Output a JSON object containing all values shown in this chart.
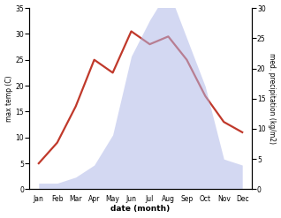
{
  "months": [
    "Jan",
    "Feb",
    "Mar",
    "Apr",
    "May",
    "Jun",
    "Jul",
    "Aug",
    "Sep",
    "Oct",
    "Nov",
    "Dec"
  ],
  "month_indices": [
    1,
    2,
    3,
    4,
    5,
    6,
    7,
    8,
    9,
    10,
    11,
    12
  ],
  "temperature": [
    5.0,
    9.0,
    16.0,
    25.0,
    22.5,
    30.5,
    28.0,
    29.5,
    25.0,
    18.0,
    13.0,
    11.0
  ],
  "precipitation": [
    1.0,
    1.0,
    2.0,
    4.0,
    9.0,
    22.0,
    28.0,
    33.0,
    25.0,
    17.0,
    5.0,
    4.0
  ],
  "temp_color": "#c0392b",
  "precip_color": "#b0b8e8",
  "background_color": "#ffffff",
  "xlabel": "date (month)",
  "ylabel_left": "max temp (C)",
  "ylabel_right": "med. precipitation (kg/m2)",
  "temp_ylim": [
    0,
    35
  ],
  "precip_ylim": [
    0,
    30
  ],
  "temp_yticks": [
    0,
    5,
    10,
    15,
    20,
    25,
    30,
    35
  ],
  "precip_yticks": [
    0,
    5,
    10,
    15,
    20,
    25,
    30
  ],
  "linewidth": 1.6,
  "figwidth": 3.18,
  "figheight": 2.47,
  "dpi": 100
}
